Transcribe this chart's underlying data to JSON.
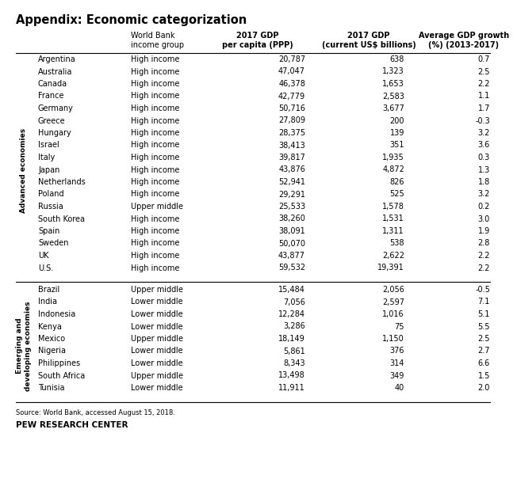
{
  "title": "Appendix: Economic categorization",
  "advanced_label": "Advanced economies",
  "emerging_label": "Emerging and\ndeveloping economies",
  "advanced_rows": [
    [
      "Argentina",
      "High income",
      "20,787",
      "638",
      "0.7"
    ],
    [
      "Australia",
      "High income",
      "47,047",
      "1,323",
      "2.5"
    ],
    [
      "Canada",
      "High income",
      "46,378",
      "1,653",
      "2.2"
    ],
    [
      "France",
      "High income",
      "42,779",
      "2,583",
      "1.1"
    ],
    [
      "Germany",
      "High income",
      "50,716",
      "3,677",
      "1.7"
    ],
    [
      "Greece",
      "High income",
      "27,809",
      "200",
      "-0.3"
    ],
    [
      "Hungary",
      "High income",
      "28,375",
      "139",
      "3.2"
    ],
    [
      "Israel",
      "High income",
      "38,413",
      "351",
      "3.6"
    ],
    [
      "Italy",
      "High income",
      "39,817",
      "1,935",
      "0.3"
    ],
    [
      "Japan",
      "High income",
      "43,876",
      "4,872",
      "1.3"
    ],
    [
      "Netherlands",
      "High income",
      "52,941",
      "826",
      "1.8"
    ],
    [
      "Poland",
      "High income",
      "29,291",
      "525",
      "3.2"
    ],
    [
      "Russia",
      "Upper middle",
      "25,533",
      "1,578",
      "0.2"
    ],
    [
      "South Korea",
      "High income",
      "38,260",
      "1,531",
      "3.0"
    ],
    [
      "Spain",
      "High income",
      "38,091",
      "1,311",
      "1.9"
    ],
    [
      "Sweden",
      "High income",
      "50,070",
      "538",
      "2.8"
    ],
    [
      "UK",
      "High income",
      "43,877",
      "2,622",
      "2.2"
    ],
    [
      "U.S.",
      "High income",
      "59,532",
      "19,391",
      "2.2"
    ]
  ],
  "emerging_rows": [
    [
      "Brazil",
      "Upper middle",
      "15,484",
      "2,056",
      "-0.5"
    ],
    [
      "India",
      "Lower middle",
      "7,056",
      "2,597",
      "7.1"
    ],
    [
      "Indonesia",
      "Lower middle",
      "12,284",
      "1,016",
      "5.1"
    ],
    [
      "Kenya",
      "Lower middle",
      "3,286",
      "75",
      "5.5"
    ],
    [
      "Mexico",
      "Upper middle",
      "18,149",
      "1,150",
      "2.5"
    ],
    [
      "Nigeria",
      "Lower middle",
      "5,861",
      "376",
      "2.7"
    ],
    [
      "Philippines",
      "Lower middle",
      "8,343",
      "314",
      "6.6"
    ],
    [
      "South Africa",
      "Upper middle",
      "13,498",
      "349",
      "1.5"
    ],
    [
      "Tunisia",
      "Lower middle",
      "11,911",
      "40",
      "2.0"
    ]
  ],
  "source_text": "Source: World Bank, accessed August 15, 2018.",
  "footer_text": "PEW RESEARCH CENTER",
  "bg_color": "#ffffff",
  "col1_header": "World Bank\nincome group",
  "col2_header": "2017 GDP\nper capita (PPP)",
  "col3_header": "2017 GDP\n(current US$ billions)",
  "col4_header": "Average GDP growth\n(%) (2013-2017)"
}
